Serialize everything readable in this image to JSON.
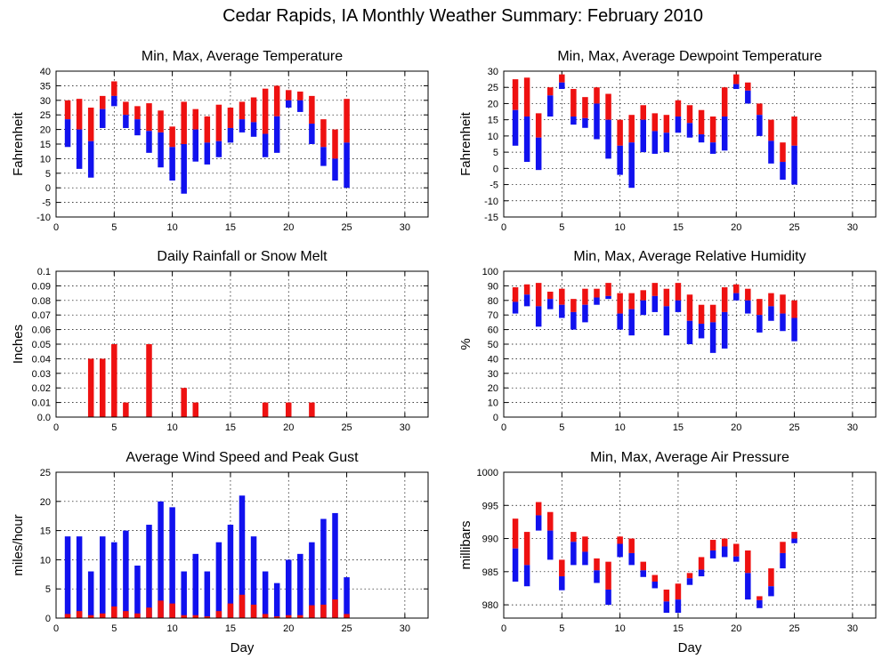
{
  "title": "Cedar Rapids, IA Monthly Weather Summary: February 2010",
  "colors": {
    "max": "#ee1111",
    "min": "#1111ee",
    "grid": "#000000"
  },
  "chart_data": [
    {
      "id": "temp",
      "type": "bar",
      "subtype": "floating-range",
      "title": "Min, Max, Average Temperature",
      "xlabel": "",
      "ylabel": "Fahrenheit",
      "xlim": [
        0,
        32
      ],
      "xticks": [
        0,
        5,
        10,
        15,
        20,
        25,
        30
      ],
      "ylim": [
        -10,
        40
      ],
      "yticks": [
        -10,
        -5,
        0,
        5,
        10,
        15,
        20,
        25,
        30,
        35,
        40
      ],
      "grid": true,
      "x": [
        1,
        2,
        3,
        4,
        5,
        6,
        7,
        8,
        9,
        10,
        11,
        12,
        13,
        14,
        15,
        16,
        17,
        18,
        19,
        20,
        21,
        22,
        23,
        24,
        25
      ],
      "min": [
        14,
        6.5,
        3.5,
        20.5,
        28,
        20.5,
        18,
        12,
        7,
        2.5,
        -2,
        9,
        8,
        10.5,
        15.5,
        19,
        17.5,
        10.5,
        12,
        27.5,
        26,
        15,
        7.5,
        2.5,
        0
      ],
      "avg": [
        23.5,
        20,
        16,
        27,
        31.5,
        25,
        23.5,
        19.5,
        19,
        14,
        15,
        20,
        15.5,
        16,
        20.5,
        23.5,
        22.5,
        18.5,
        24.5,
        30,
        30,
        22,
        14,
        10,
        15.5
      ],
      "max": [
        30,
        30.5,
        27.5,
        31.5,
        36.5,
        29.5,
        28,
        29,
        26.5,
        21,
        29.5,
        27,
        24.5,
        28.5,
        27.5,
        29.5,
        31,
        34,
        35,
        33.5,
        33,
        31.5,
        23.5,
        20,
        30.5
      ]
    },
    {
      "id": "dewpoint",
      "type": "bar",
      "subtype": "floating-range",
      "title": "Min, Max, Average Dewpoint Temperature",
      "xlabel": "",
      "ylabel": "Fahrenheit",
      "xlim": [
        0,
        32
      ],
      "xticks": [
        0,
        5,
        10,
        15,
        20,
        25,
        30
      ],
      "ylim": [
        -15,
        30
      ],
      "yticks": [
        -15,
        -10,
        -5,
        0,
        5,
        10,
        15,
        20,
        25,
        30
      ],
      "grid": true,
      "x": [
        1,
        2,
        3,
        4,
        5,
        6,
        7,
        8,
        9,
        10,
        11,
        12,
        13,
        14,
        15,
        16,
        17,
        18,
        19,
        20,
        21,
        22,
        23,
        24,
        25
      ],
      "min": [
        7,
        2,
        -0.5,
        16,
        24.5,
        13.5,
        12.5,
        9,
        3,
        -2,
        -6,
        5,
        4.5,
        5,
        11,
        9.5,
        8,
        4.5,
        5.5,
        24.5,
        20,
        10,
        1.5,
        -3.5,
        -5
      ],
      "avg": [
        18,
        16,
        9.5,
        22.5,
        26.5,
        16,
        15.5,
        20,
        15,
        7,
        8,
        15,
        11.5,
        11,
        16,
        14,
        10.5,
        8,
        16,
        26,
        24,
        16.5,
        8.5,
        2,
        7
      ],
      "max": [
        27.5,
        28,
        17,
        25,
        29,
        24.5,
        22,
        25,
        23,
        15,
        16.5,
        19.5,
        17,
        16.5,
        21,
        19.5,
        18,
        16,
        25,
        29,
        26.5,
        20,
        15,
        8,
        16
      ]
    },
    {
      "id": "rain",
      "type": "bar",
      "title": "Daily Rainfall or Snow Melt",
      "xlabel": "",
      "ylabel": "Inches",
      "xlim": [
        0,
        32
      ],
      "xticks": [
        0,
        5,
        10,
        15,
        20,
        25,
        30
      ],
      "ylim": [
        0,
        0.1
      ],
      "yticks": [
        "0.0",
        "0.01",
        "0.02",
        "0.03",
        "0.04",
        "0.05",
        "0.06",
        "0.07",
        "0.08",
        "0.09",
        "0.1"
      ],
      "grid": true,
      "x": [
        1,
        2,
        3,
        4,
        5,
        6,
        7,
        8,
        9,
        10,
        11,
        12,
        13,
        14,
        15,
        16,
        17,
        18,
        19,
        20,
        21,
        22,
        23,
        24,
        25
      ],
      "values": [
        0,
        0,
        0.04,
        0.04,
        0.05,
        0.01,
        0,
        0.05,
        0,
        0,
        0.02,
        0.01,
        0,
        0,
        0,
        0,
        0,
        0.01,
        0,
        0.01,
        0,
        0.01,
        0,
        0,
        0
      ]
    },
    {
      "id": "humidity",
      "type": "bar",
      "subtype": "floating-range",
      "title": "Min, Max, Average Relative Humidity",
      "xlabel": "",
      "ylabel": "%",
      "xlim": [
        0,
        32
      ],
      "xticks": [
        0,
        5,
        10,
        15,
        20,
        25,
        30
      ],
      "ylim": [
        0,
        100
      ],
      "yticks": [
        0,
        10,
        20,
        30,
        40,
        50,
        60,
        70,
        80,
        90,
        100
      ],
      "grid": true,
      "x": [
        1,
        2,
        3,
        4,
        5,
        6,
        7,
        8,
        9,
        10,
        11,
        12,
        13,
        14,
        15,
        16,
        17,
        18,
        19,
        20,
        21,
        22,
        23,
        24,
        25
      ],
      "min": [
        71,
        76,
        62,
        74,
        68,
        60,
        65,
        77,
        81,
        60,
        56,
        70,
        72,
        56,
        72,
        50,
        54,
        44,
        47,
        80,
        71,
        58,
        66,
        59,
        52
      ],
      "avg": [
        79,
        84,
        76,
        81,
        77,
        72,
        77,
        82,
        83,
        71,
        74,
        80,
        83,
        76,
        80,
        66,
        64,
        65,
        72,
        85,
        80,
        70,
        76,
        71,
        68
      ],
      "max": [
        89,
        91,
        92,
        86,
        88,
        81,
        88,
        88,
        92,
        85,
        85,
        87,
        92,
        88,
        92,
        84,
        77,
        77,
        89,
        91,
        88,
        81,
        85,
        84,
        80
      ]
    },
    {
      "id": "wind",
      "type": "bar",
      "title": "Average Wind Speed and Peak Gust",
      "xlabel": "Day",
      "ylabel": "miles/hour",
      "xlim": [
        0,
        32
      ],
      "xticks": [
        0,
        5,
        10,
        15,
        20,
        25,
        30
      ],
      "ylim": [
        0,
        25
      ],
      "yticks": [
        0,
        5,
        10,
        15,
        20,
        25
      ],
      "grid": true,
      "x": [
        1,
        2,
        3,
        4,
        5,
        6,
        7,
        8,
        9,
        10,
        11,
        12,
        13,
        14,
        15,
        16,
        17,
        18,
        19,
        20,
        21,
        22,
        23,
        24,
        25
      ],
      "series": [
        {
          "values": [
            14,
            14,
            8,
            14,
            13,
            15,
            9,
            16,
            20,
            19,
            8,
            11,
            8,
            13,
            16,
            21,
            14,
            8,
            6,
            10,
            11,
            13,
            17,
            18,
            7
          ]
        },
        {
          "values": [
            0.7,
            1.2,
            0.5,
            0.8,
            2,
            1.2,
            0.8,
            1.8,
            3,
            2.5,
            0.5,
            0.5,
            0.3,
            1.2,
            2.5,
            4,
            2.3,
            0.7,
            0.3,
            0.5,
            0.5,
            2.2,
            2.3,
            3.2,
            0.7
          ]
        }
      ]
    },
    {
      "id": "pressure",
      "type": "bar",
      "subtype": "floating-range",
      "title": "Min, Max, Average Air Pressure",
      "xlabel": "Day",
      "ylabel": "millibars",
      "xlim": [
        0,
        32
      ],
      "xticks": [
        0,
        5,
        10,
        15,
        20,
        25,
        30
      ],
      "ylim": [
        978,
        1000
      ],
      "yticks": [
        980,
        985,
        990,
        995,
        1000
      ],
      "grid": true,
      "x": [
        1,
        2,
        3,
        4,
        5,
        6,
        7,
        8,
        9,
        10,
        11,
        12,
        13,
        14,
        15,
        16,
        17,
        18,
        19,
        20,
        21,
        22,
        23,
        24,
        25
      ],
      "min": [
        983.5,
        982.8,
        991.2,
        986.8,
        982.2,
        986,
        986,
        983.3,
        980,
        987.2,
        986,
        984.2,
        982.5,
        978.8,
        978.8,
        983,
        984.3,
        987,
        987.2,
        986.5,
        980.8,
        979.5,
        981.3,
        985.5,
        989.3
      ],
      "avg": [
        988.5,
        986,
        993.5,
        991.2,
        984.3,
        989.5,
        988,
        985.2,
        982.3,
        989.2,
        987.8,
        985.2,
        983.5,
        980.5,
        980.8,
        984,
        985.3,
        988.2,
        988.8,
        987.3,
        984.8,
        980.7,
        982.8,
        987.8,
        990
      ],
      "max": [
        993,
        991,
        995.5,
        994,
        986.8,
        991,
        990.3,
        987,
        986.5,
        990.3,
        990,
        986.5,
        984.5,
        982.3,
        983.2,
        984.8,
        987.2,
        989.8,
        990,
        989.2,
        988.2,
        981.3,
        985.5,
        989.5,
        991
      ]
    }
  ]
}
